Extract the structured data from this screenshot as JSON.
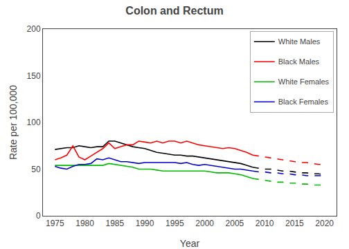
{
  "chart_data": {
    "type": "line",
    "title": "Colon and Rectum",
    "xlabel": "Year",
    "ylabel": "Rate per 100,000",
    "xlim": [
      1973,
      2022
    ],
    "ylim": [
      0,
      200
    ],
    "xticks": [
      1975,
      1980,
      1985,
      1990,
      1995,
      2000,
      2005,
      2010,
      2015,
      2020
    ],
    "yticks": [
      0,
      50,
      100,
      150,
      200
    ],
    "grid": false,
    "legend": "upper right",
    "x": [
      1975,
      1976,
      1977,
      1978,
      1979,
      1980,
      1981,
      1982,
      1983,
      1984,
      1985,
      1986,
      1987,
      1988,
      1989,
      1990,
      1991,
      1992,
      1993,
      1994,
      1995,
      1996,
      1997,
      1998,
      1999,
      2000,
      2001,
      2002,
      2003,
      2004,
      2005,
      2006,
      2007,
      2008,
      2009,
      2010,
      2011,
      2012,
      2013,
      2014,
      2015,
      2016,
      2017,
      2018,
      2019,
      2020
    ],
    "series": [
      {
        "name": "White Males",
        "color": "#000000",
        "line_style": "solid",
        "values": [
          71,
          72,
          73,
          73,
          75,
          74,
          73,
          74,
          74,
          80,
          80,
          78,
          76,
          74,
          73,
          72,
          70,
          68,
          67,
          66,
          65,
          65,
          64,
          64,
          63,
          62,
          61,
          60,
          59,
          58,
          57,
          56,
          54,
          52,
          null,
          null,
          null,
          null,
          null,
          null,
          null,
          null,
          null,
          null,
          null,
          null
        ]
      },
      {
        "name": "White Males",
        "color": "#000000",
        "line_style": "dashed",
        "values": [
          null,
          null,
          null,
          null,
          null,
          null,
          null,
          null,
          null,
          null,
          null,
          null,
          null,
          null,
          null,
          null,
          null,
          null,
          null,
          null,
          null,
          null,
          null,
          null,
          null,
          null,
          null,
          null,
          null,
          null,
          null,
          null,
          null,
          52,
          51,
          50,
          50,
          49,
          48,
          48,
          47,
          46,
          46,
          45,
          45,
          44
        ]
      },
      {
        "name": "Black Males",
        "color": "#ff0000",
        "line_style": "solid",
        "values": [
          60,
          62,
          65,
          75,
          63,
          60,
          64,
          68,
          72,
          78,
          72,
          74,
          76,
          76,
          80,
          79,
          78,
          80,
          78,
          80,
          80,
          78,
          80,
          78,
          76,
          75,
          74,
          73,
          72,
          73,
          72,
          70,
          68,
          65,
          null,
          null,
          null,
          null,
          null,
          null,
          null,
          null,
          null,
          null,
          null,
          null
        ]
      },
      {
        "name": "Black Males",
        "color": "#ff0000",
        "line_style": "dashed",
        "values": [
          null,
          null,
          null,
          null,
          null,
          null,
          null,
          null,
          null,
          null,
          null,
          null,
          null,
          null,
          null,
          null,
          null,
          null,
          null,
          null,
          null,
          null,
          null,
          null,
          null,
          null,
          null,
          null,
          null,
          null,
          null,
          null,
          null,
          65,
          64,
          63,
          62,
          61,
          60,
          59,
          58,
          57,
          57,
          56,
          55,
          55
        ]
      },
      {
        "name": "White Females",
        "color": "#00bb00",
        "line_style": "solid",
        "values": [
          54,
          54,
          54,
          54,
          54,
          54,
          54,
          54,
          54,
          56,
          55,
          54,
          53,
          52,
          50,
          50,
          50,
          49,
          48,
          48,
          48,
          48,
          48,
          48,
          48,
          48,
          47,
          46,
          46,
          46,
          45,
          44,
          42,
          40,
          null,
          null,
          null,
          null,
          null,
          null,
          null,
          null,
          null,
          null,
          null,
          null
        ]
      },
      {
        "name": "White Females",
        "color": "#00bb00",
        "line_style": "dashed",
        "values": [
          null,
          null,
          null,
          null,
          null,
          null,
          null,
          null,
          null,
          null,
          null,
          null,
          null,
          null,
          null,
          null,
          null,
          null,
          null,
          null,
          null,
          null,
          null,
          null,
          null,
          null,
          null,
          null,
          null,
          null,
          null,
          null,
          null,
          40,
          39,
          38,
          37,
          36,
          36,
          35,
          35,
          34,
          34,
          33,
          33,
          33
        ]
      },
      {
        "name": "Black Females",
        "color": "#0000cc",
        "line_style": "solid",
        "values": [
          53,
          51,
          50,
          53,
          55,
          55,
          56,
          61,
          60,
          62,
          60,
          58,
          58,
          57,
          56,
          57,
          57,
          57,
          57,
          57,
          57,
          56,
          57,
          55,
          54,
          55,
          54,
          53,
          52,
          51,
          50,
          50,
          49,
          48,
          null,
          null,
          null,
          null,
          null,
          null,
          null,
          null,
          null,
          null,
          null,
          null
        ]
      },
      {
        "name": "Black Females",
        "color": "#0000cc",
        "line_style": "dashed",
        "values": [
          null,
          null,
          null,
          null,
          null,
          null,
          null,
          null,
          null,
          null,
          null,
          null,
          null,
          null,
          null,
          null,
          null,
          null,
          null,
          null,
          null,
          null,
          null,
          null,
          null,
          null,
          null,
          null,
          null,
          null,
          null,
          null,
          null,
          48,
          47,
          47,
          46,
          46,
          45,
          45,
          44,
          44,
          43,
          43,
          43,
          43
        ]
      }
    ]
  }
}
